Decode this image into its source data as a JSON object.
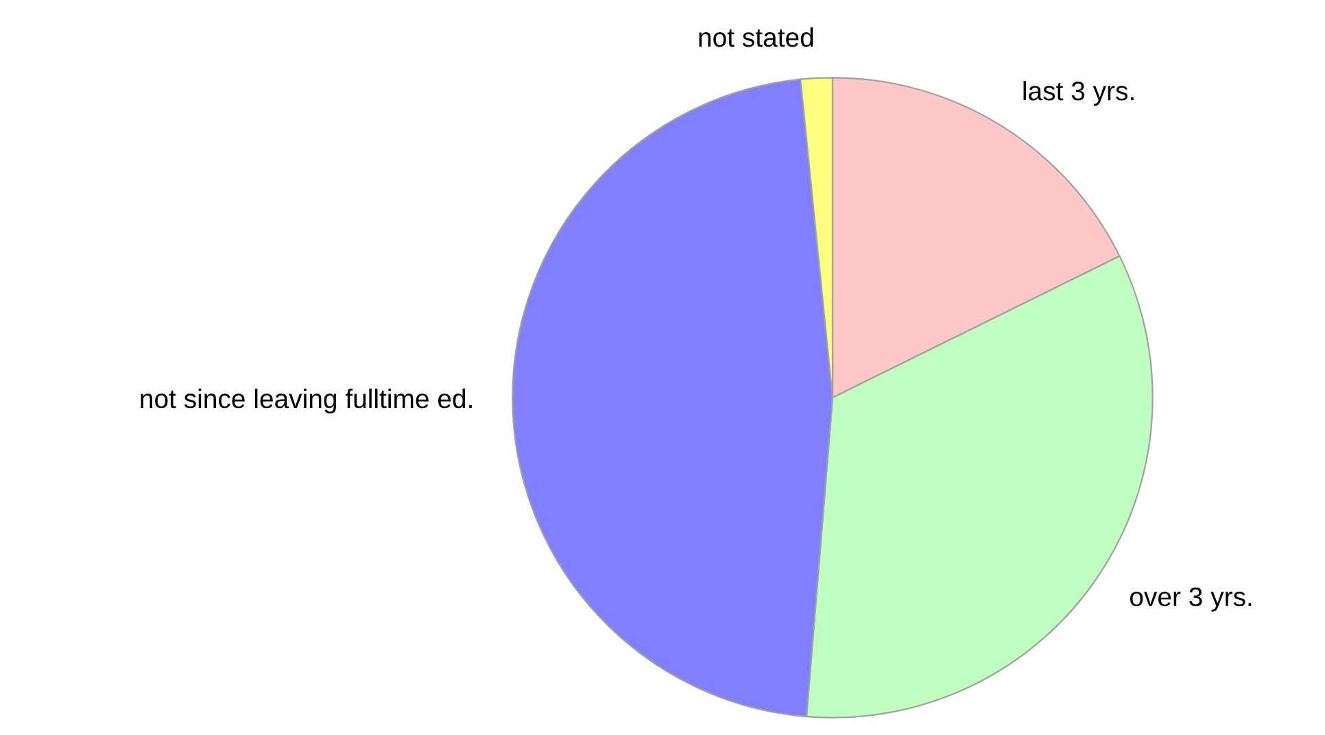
{
  "chart_data": {
    "type": "pie",
    "categories": [
      "last 3 yrs.",
      "over 3 yrs.",
      "not since leaving fulltime ed.",
      "not stated"
    ],
    "values": [
      17.7,
      33.6,
      47.1,
      1.6
    ],
    "colors": [
      "#ffc8c8",
      "#c0ffc0",
      "#8080ff",
      "#ffff80"
    ]
  }
}
